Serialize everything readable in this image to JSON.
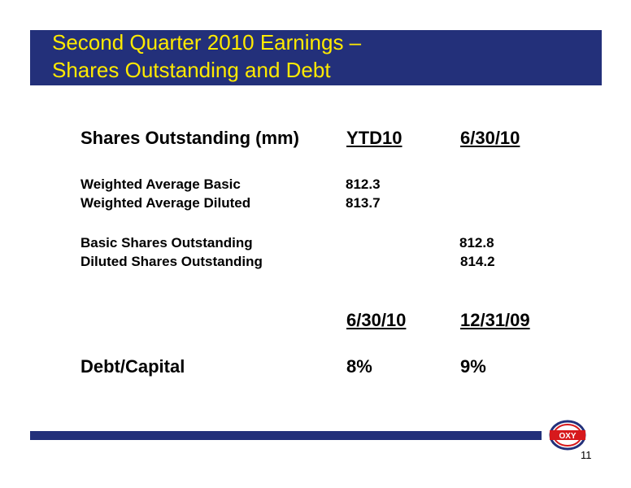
{
  "title": {
    "line1": "Second Quarter 2010 Earnings –",
    "line2": "Shares Outstanding and Debt"
  },
  "shares_section": {
    "heading": "Shares Outstanding (mm)",
    "col1_header": "YTD10",
    "col2_header": "6/30/10",
    "rows": [
      {
        "label": "Weighted Average Basic",
        "col1": "812.3",
        "col2": ""
      },
      {
        "label": "Weighted Average Diluted",
        "col1": "813.7",
        "col2": ""
      },
      {
        "label": "Basic Shares Outstanding",
        "col1": "",
        "col2": "812.8"
      },
      {
        "label": "Diluted Shares Outstanding",
        "col1": "",
        "col2": "814.2"
      }
    ]
  },
  "debt_section": {
    "col1_header": "6/30/10",
    "col2_header": "12/31/09",
    "label": "Debt/Capital",
    "col1": "8%",
    "col2": "9%"
  },
  "logo_text": "OXY",
  "page_number": "11",
  "colors": {
    "title_bar": "#23307a",
    "title_text": "#ffea00",
    "logo_red": "#d7191c",
    "logo_blue": "#23307a"
  }
}
